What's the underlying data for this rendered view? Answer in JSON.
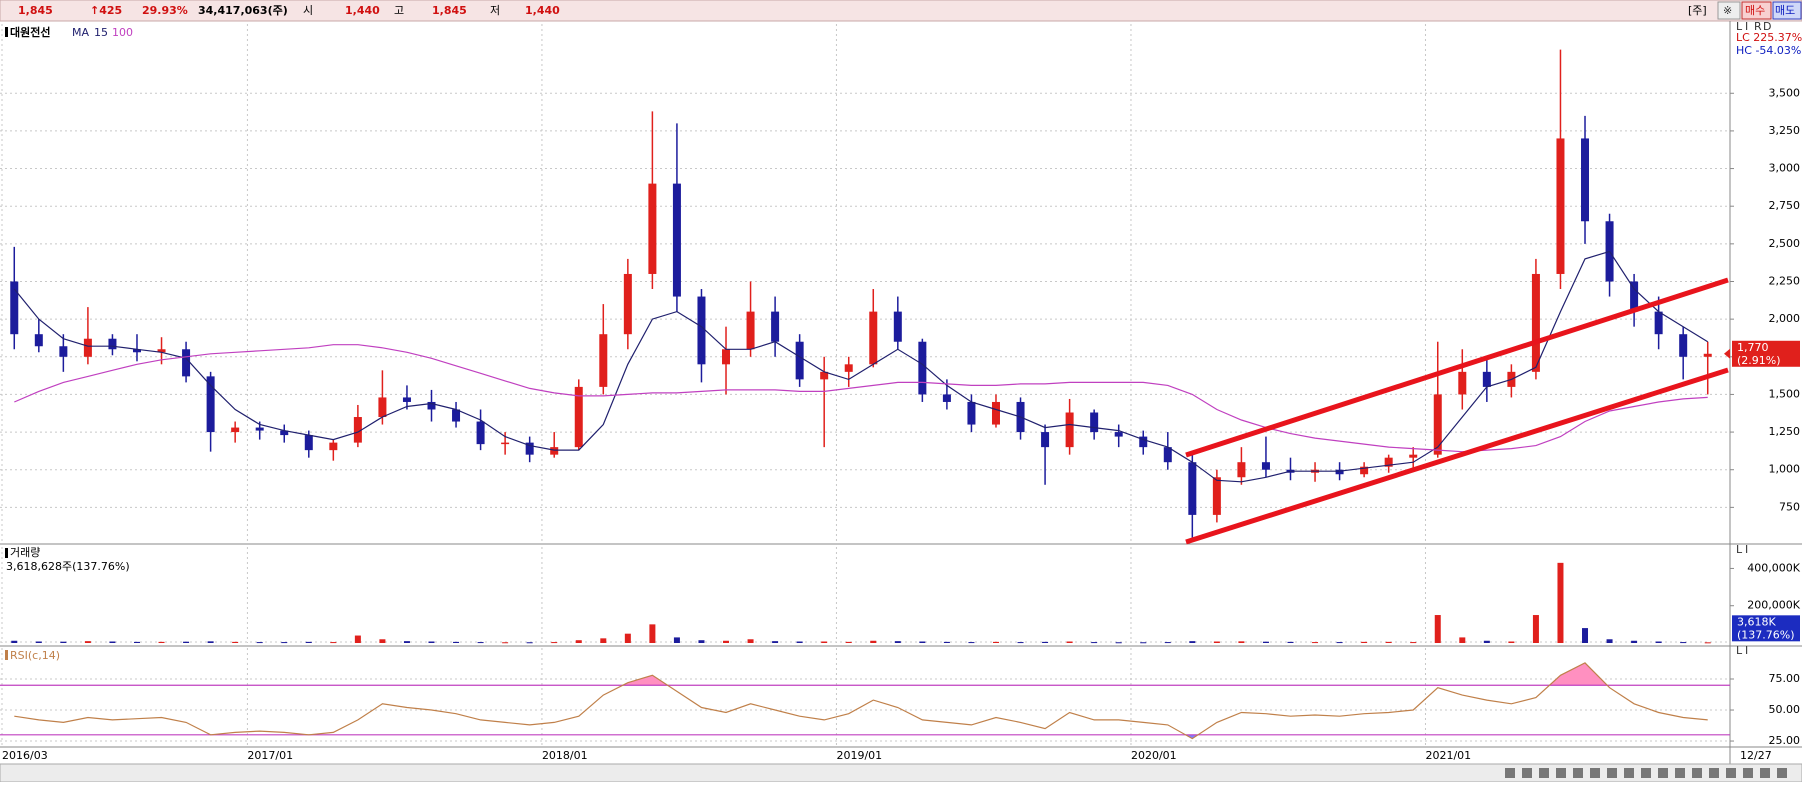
{
  "quote_bar": {
    "price": "1,845",
    "change": "↑425",
    "change_pct": "29.93%",
    "volume": "34,417,063(주)",
    "open_label": "시",
    "open": "1,440",
    "high_label": "고",
    "high": "1,845",
    "low_label": "저",
    "low": "1,440",
    "unit": "[주]",
    "option": "※",
    "buy": "매수",
    "sell": "매도"
  },
  "chart_data": [
    {
      "type": "candlestick",
      "name": "대원전선",
      "ma_label": "MA",
      "buttons": [
        "L",
        "I",
        "R",
        "D"
      ],
      "lc_label": "LC 225.37%",
      "hc_label": "HC -54.03%",
      "last_date_label": "12/27",
      "categories": [
        "2016/03",
        null,
        null,
        null,
        null,
        null,
        null,
        null,
        null,
        null,
        "2017/01",
        null,
        null,
        null,
        null,
        null,
        null,
        null,
        null,
        null,
        null,
        null,
        "2018/01",
        null,
        null,
        null,
        null,
        null,
        null,
        null,
        null,
        null,
        null,
        null,
        "2019/01",
        null,
        null,
        null,
        null,
        null,
        null,
        null,
        null,
        null,
        null,
        null,
        "2020/01",
        null,
        null,
        null,
        null,
        null,
        null,
        null,
        null,
        null,
        null,
        null,
        "2021/01",
        null,
        null,
        null,
        null,
        null,
        null,
        null,
        null,
        null,
        null,
        null
      ],
      "open": [
        2250,
        1900,
        1820,
        1750,
        1870,
        1800,
        1780,
        1800,
        1620,
        1250,
        1280,
        1260,
        1230,
        1130,
        1180,
        1350,
        1480,
        1450,
        1400,
        1320,
        1170,
        1180,
        1100,
        1150,
        1550,
        1900,
        2300,
        2900,
        2150,
        1700,
        1800,
        2050,
        1850,
        1600,
        1650,
        1700,
        2050,
        1850,
        1500,
        1450,
        1300,
        1450,
        1250,
        1150,
        1380,
        1250,
        1220,
        1150,
        1050,
        700,
        950,
        1050,
        1000,
        980,
        1000,
        970,
        1020,
        1080,
        1100,
        1500,
        1650,
        1550,
        1650,
        2300,
        3200,
        2650,
        2250,
        2050,
        1900,
        1750
      ],
      "high": [
        2480,
        2000,
        1900,
        2080,
        1900,
        1900,
        1880,
        1850,
        1650,
        1320,
        1320,
        1300,
        1260,
        1200,
        1430,
        1660,
        1560,
        1530,
        1450,
        1400,
        1250,
        1220,
        1250,
        1600,
        2100,
        2400,
        3380,
        3300,
        2200,
        1950,
        2250,
        2150,
        1900,
        1750,
        1750,
        2200,
        2150,
        1870,
        1600,
        1500,
        1500,
        1480,
        1300,
        1470,
        1400,
        1300,
        1260,
        1250,
        1120,
        1000,
        1150,
        1220,
        1080,
        1050,
        1050,
        1050,
        1100,
        1150,
        1850,
        1800,
        1750,
        1700,
        2400,
        3790,
        3350,
        2700,
        2300,
        2150,
        1950,
        1850
      ],
      "low": [
        1800,
        1780,
        1650,
        1700,
        1760,
        1720,
        1700,
        1580,
        1120,
        1180,
        1200,
        1180,
        1080,
        1060,
        1150,
        1300,
        1400,
        1320,
        1280,
        1130,
        1100,
        1050,
        1080,
        1130,
        1500,
        1800,
        2200,
        2050,
        1580,
        1500,
        1750,
        1750,
        1550,
        1150,
        1550,
        1680,
        1800,
        1450,
        1400,
        1250,
        1280,
        1200,
        900,
        1100,
        1200,
        1150,
        1100,
        1000,
        550,
        650,
        900,
        950,
        930,
        920,
        930,
        950,
        980,
        1000,
        1080,
        1400,
        1450,
        1480,
        1600,
        2200,
        2500,
        2150,
        1950,
        1800,
        1600,
        1500
      ],
      "close": [
        1900,
        1820,
        1750,
        1870,
        1800,
        1780,
        1800,
        1620,
        1250,
        1280,
        1260,
        1230,
        1130,
        1180,
        1350,
        1480,
        1450,
        1400,
        1320,
        1170,
        1180,
        1100,
        1150,
        1550,
        1900,
        2300,
        2900,
        2150,
        1700,
        1800,
        2050,
        1850,
        1600,
        1650,
        1700,
        2050,
        1850,
        1500,
        1450,
        1300,
        1450,
        1250,
        1150,
        1380,
        1250,
        1220,
        1150,
        1050,
        700,
        950,
        1050,
        1000,
        980,
        1000,
        970,
        1020,
        1080,
        1100,
        1500,
        1650,
        1550,
        1650,
        2300,
        3200,
        2650,
        2250,
        2050,
        1900,
        1750,
        1770
      ],
      "series": [
        {
          "name": "15",
          "color": "#20206e",
          "values": [
            2200,
            2000,
            1870,
            1820,
            1820,
            1800,
            1780,
            1740,
            1560,
            1400,
            1300,
            1260,
            1230,
            1200,
            1250,
            1350,
            1420,
            1440,
            1400,
            1330,
            1220,
            1160,
            1130,
            1130,
            1300,
            1700,
            2000,
            2050,
            1950,
            1800,
            1800,
            1850,
            1750,
            1650,
            1600,
            1700,
            1800,
            1700,
            1560,
            1450,
            1400,
            1350,
            1280,
            1300,
            1280,
            1260,
            1200,
            1150,
            1050,
            930,
            920,
            950,
            990,
            990,
            990,
            1010,
            1030,
            1050,
            1150,
            1350,
            1550,
            1600,
            1680,
            2050,
            2400,
            2450,
            2200,
            2050,
            1950,
            1850
          ]
        },
        {
          "name": "100",
          "color": "#c040c0",
          "values": [
            1450,
            1520,
            1580,
            1620,
            1660,
            1700,
            1730,
            1750,
            1770,
            1780,
            1790,
            1800,
            1810,
            1830,
            1830,
            1810,
            1780,
            1740,
            1690,
            1640,
            1590,
            1540,
            1510,
            1490,
            1490,
            1500,
            1510,
            1510,
            1520,
            1530,
            1530,
            1530,
            1520,
            1520,
            1540,
            1560,
            1580,
            1580,
            1570,
            1560,
            1560,
            1570,
            1570,
            1580,
            1580,
            1580,
            1580,
            1560,
            1500,
            1400,
            1330,
            1280,
            1240,
            1210,
            1190,
            1170,
            1150,
            1140,
            1130,
            1120,
            1130,
            1140,
            1160,
            1220,
            1320,
            1390,
            1420,
            1450,
            1470,
            1480
          ]
        }
      ],
      "up_color": "#e0201c",
      "down_color": "#1c1c9c",
      "ylim": [
        520,
        3960
      ],
      "yticks": [
        750,
        {
          "value": 1000,
          "label": "1,000"
        },
        {
          "value": 1250,
          "label": "1,250"
        },
        {
          "value": 1500,
          "label": "1,500"
        },
        {
          "value": 1750,
          "label": "1,750"
        },
        {
          "value": 2000,
          "label": "2,000"
        },
        {
          "value": 2250,
          "label": "2,250"
        },
        {
          "value": 2500,
          "label": "2,500"
        },
        {
          "value": 2750,
          "label": "2,750"
        },
        {
          "value": 3000,
          "label": "3,000"
        },
        {
          "value": 3250,
          "label": "3,250"
        },
        {
          "value": 3500,
          "label": "3,500"
        }
      ],
      "grid": true,
      "current": {
        "value": 1770,
        "label": "1,770",
        "change_label": "(2.91%)"
      }
    },
    {
      "type": "bar",
      "title": "거래량",
      "subtitle": "3,618,628주(137.76%)",
      "buttons": [
        "L",
        "I"
      ],
      "values": [
        12000,
        8000,
        7000,
        10000,
        8000,
        6000,
        6000,
        7000,
        9000,
        6000,
        5000,
        5000,
        6000,
        5000,
        40000,
        20000,
        10000,
        8000,
        6000,
        5000,
        4000,
        4000,
        5000,
        15000,
        25000,
        50000,
        100000,
        30000,
        15000,
        12000,
        20000,
        10000,
        8000,
        8000,
        6000,
        12000,
        10000,
        8000,
        6000,
        5000,
        6000,
        5000,
        6000,
        8000,
        5000,
        4000,
        4000,
        5000,
        10000,
        8000,
        9000,
        7000,
        6000,
        5000,
        5000,
        6000,
        6000,
        5000,
        150000,
        30000,
        12000,
        8000,
        150000,
        430000,
        80000,
        20000,
        12000,
        8000,
        5000,
        3618
      ],
      "ylim": [
        0,
        515000
      ],
      "yticks": [
        {
          "value": 200000,
          "label": "200,000K"
        },
        {
          "value": 400000,
          "label": "400,000K"
        }
      ],
      "current": {
        "value": 3618,
        "label": "3,618K",
        "change_label": "(137.76%)"
      }
    },
    {
      "type": "line",
      "title": "RSI(c,14)",
      "color": "#c0804a",
      "buttons": [
        "L",
        "I"
      ],
      "values": [
        45,
        42,
        40,
        44,
        42,
        43,
        44,
        40,
        30,
        32,
        33,
        32,
        30,
        32,
        42,
        55,
        52,
        50,
        47,
        42,
        40,
        38,
        40,
        45,
        62,
        72,
        78,
        65,
        52,
        48,
        55,
        50,
        45,
        42,
        47,
        58,
        52,
        42,
        40,
        38,
        44,
        40,
        35,
        48,
        42,
        42,
        40,
        38,
        27,
        40,
        48,
        47,
        45,
        46,
        45,
        47,
        48,
        50,
        68,
        62,
        58,
        55,
        60,
        78,
        88,
        68,
        55,
        48,
        44,
        42
      ],
      "ylim": [
        21,
        100
      ],
      "yticks": [
        {
          "value": 25,
          "label": "25.00"
        },
        {
          "value": 50,
          "label": "50.00"
        },
        {
          "value": 75,
          "label": "75.00"
        }
      ],
      "bands": [
        30,
        70
      ],
      "band_color": "#c040c0",
      "overbought_color": "#ff90c0",
      "oversold_color": "#8080ff"
    }
  ]
}
